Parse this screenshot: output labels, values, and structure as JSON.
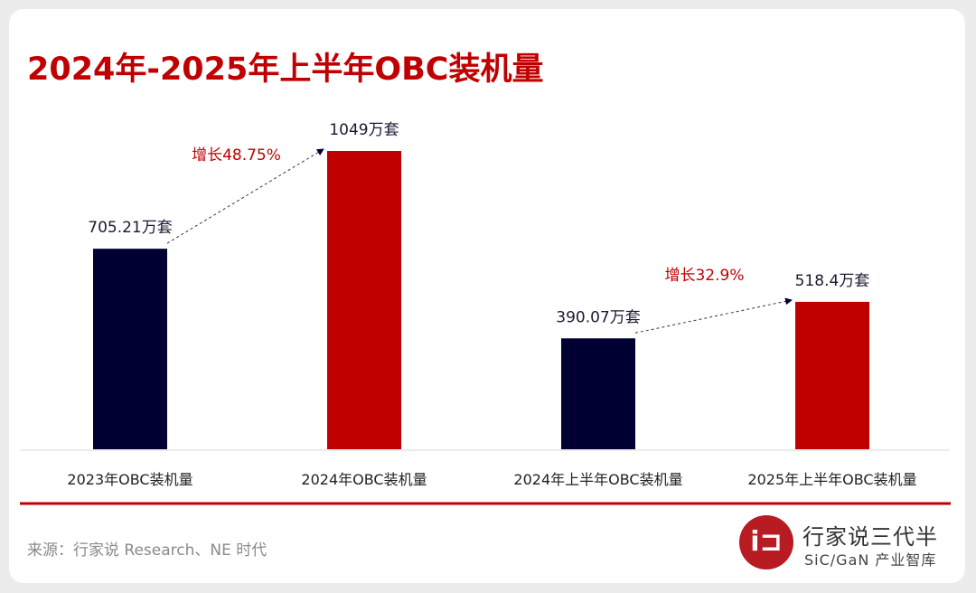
{
  "chart_data": {
    "type": "bar",
    "title": "2024年-2025年上半年OBC装机量",
    "categories": [
      "2023年OBC装机量",
      "2024年OBC装机量",
      "2024年上半年OBC装机量",
      "2025年上半年OBC装机量"
    ],
    "values": [
      705.21,
      1049,
      390.07,
      518.4
    ],
    "data_labels": [
      "705.21万套",
      "1049万套",
      "390.07万套",
      "518.4万套"
    ],
    "colors": [
      "#000033",
      "#c00000",
      "#000033",
      "#c00000"
    ],
    "annotations": [
      {
        "from": 0,
        "to": 1,
        "text": "增长48.75%"
      },
      {
        "from": 2,
        "to": 3,
        "text": "增长32.9%"
      }
    ],
    "annotation_color": "#c00000",
    "grid": false,
    "ylim": [
      0,
      1049
    ]
  },
  "source": "来源：行家说 Research、NE 时代",
  "logo": {
    "name": "行家说三代半",
    "sub": "SiC/GaN 产业智库",
    "mark": "i⊐"
  }
}
